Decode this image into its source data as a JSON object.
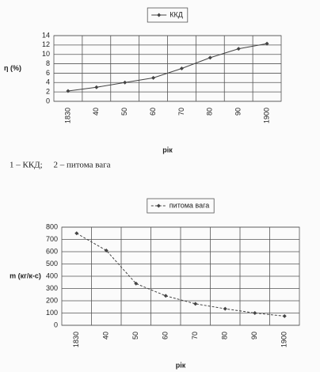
{
  "chart_data": [
    {
      "type": "line",
      "ylabel": "η (%)",
      "xlabel": "рік",
      "categories": [
        "1830",
        "40",
        "50",
        "60",
        "70",
        "80",
        "90",
        "1900"
      ],
      "series": [
        {
          "name": "ККД",
          "color": "#444444",
          "line_style": "solid",
          "values": [
            2.2,
            3,
            4,
            5,
            7,
            9.3,
            11.2,
            12.3
          ]
        }
      ],
      "ylim": [
        0,
        14
      ],
      "yticks": [
        0,
        2,
        4,
        6,
        8,
        10,
        12,
        14
      ],
      "grid": true,
      "legend": "top"
    },
    {
      "type": "line",
      "ylabel": "m (кг/к-с)",
      "xlabel": "рік",
      "categories": [
        "1830",
        "40",
        "50",
        "60",
        "70",
        "80",
        "90",
        "1900"
      ],
      "series": [
        {
          "name": "питома вага",
          "color": "#444444",
          "line_style": "dashed",
          "values": [
            750,
            610,
            340,
            240,
            175,
            135,
            100,
            75
          ]
        }
      ],
      "ylim": [
        0,
        800
      ],
      "yticks": [
        0,
        100,
        200,
        300,
        400,
        500,
        600,
        700,
        800
      ],
      "grid": true,
      "legend": "top"
    }
  ],
  "caption": "1 – ККД;     2 – питома вага"
}
